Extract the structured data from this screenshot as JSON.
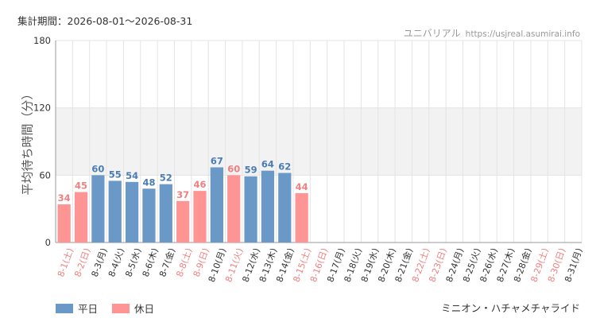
{
  "header": {
    "period_label": "集計期間：",
    "period_range": "2026-08-01〜2026-08-31",
    "source_name": "ユニバリアル",
    "source_site": "https://usjreal.asumirai.info"
  },
  "footer": {
    "attraction_name": "ミニオン・ハチャメチャライド"
  },
  "colors": {
    "weekday": "#6b99c7",
    "holiday": "#ff9494",
    "weekday_text": "#4a7db3",
    "holiday_text": "#f08080",
    "weekday_label": "#333333",
    "holiday_label": "#f08080",
    "band": "#f2f2f2",
    "grid": "#e4e4e4"
  },
  "chart_data": {
    "type": "bar",
    "ylabel": "平均待ち時間（分）",
    "ylim": [
      0,
      180
    ],
    "yticks": [
      0,
      60,
      120,
      180
    ],
    "band_range": [
      60,
      120
    ],
    "grid": true,
    "legend_position": "bottom-left",
    "legend": [
      {
        "label": "平日",
        "kind": "weekday"
      },
      {
        "label": "休日",
        "kind": "holiday"
      }
    ],
    "categories": [
      "8-1(土)",
      "8-2(日)",
      "8-3(月)",
      "8-4(火)",
      "8-5(水)",
      "8-6(木)",
      "8-7(金)",
      "8-8(土)",
      "8-9(日)",
      "8-10(月)",
      "8-11(火)",
      "8-12(水)",
      "8-13(木)",
      "8-14(金)",
      "8-15(土)",
      "8-16(日)",
      "8-17(月)",
      "8-18(火)",
      "8-19(水)",
      "8-20(木)",
      "8-21(金)",
      "8-22(土)",
      "8-23(日)",
      "8-24(月)",
      "8-25(火)",
      "8-26(水)",
      "8-27(木)",
      "8-28(金)",
      "8-29(土)",
      "8-30(日)",
      "8-31(月)"
    ],
    "day_kind": [
      "holiday",
      "holiday",
      "weekday",
      "weekday",
      "weekday",
      "weekday",
      "weekday",
      "holiday",
      "holiday",
      "weekday",
      "holiday",
      "weekday",
      "weekday",
      "weekday",
      "holiday",
      "holiday",
      "weekday",
      "weekday",
      "weekday",
      "weekday",
      "weekday",
      "holiday",
      "holiday",
      "weekday",
      "weekday",
      "weekday",
      "weekday",
      "weekday",
      "holiday",
      "holiday",
      "weekday"
    ],
    "values": [
      34,
      45,
      60,
      55,
      54,
      48,
      52,
      37,
      46,
      67,
      60,
      59,
      64,
      62,
      44,
      null,
      null,
      null,
      null,
      null,
      null,
      null,
      null,
      null,
      null,
      null,
      null,
      null,
      null,
      null,
      null
    ]
  }
}
